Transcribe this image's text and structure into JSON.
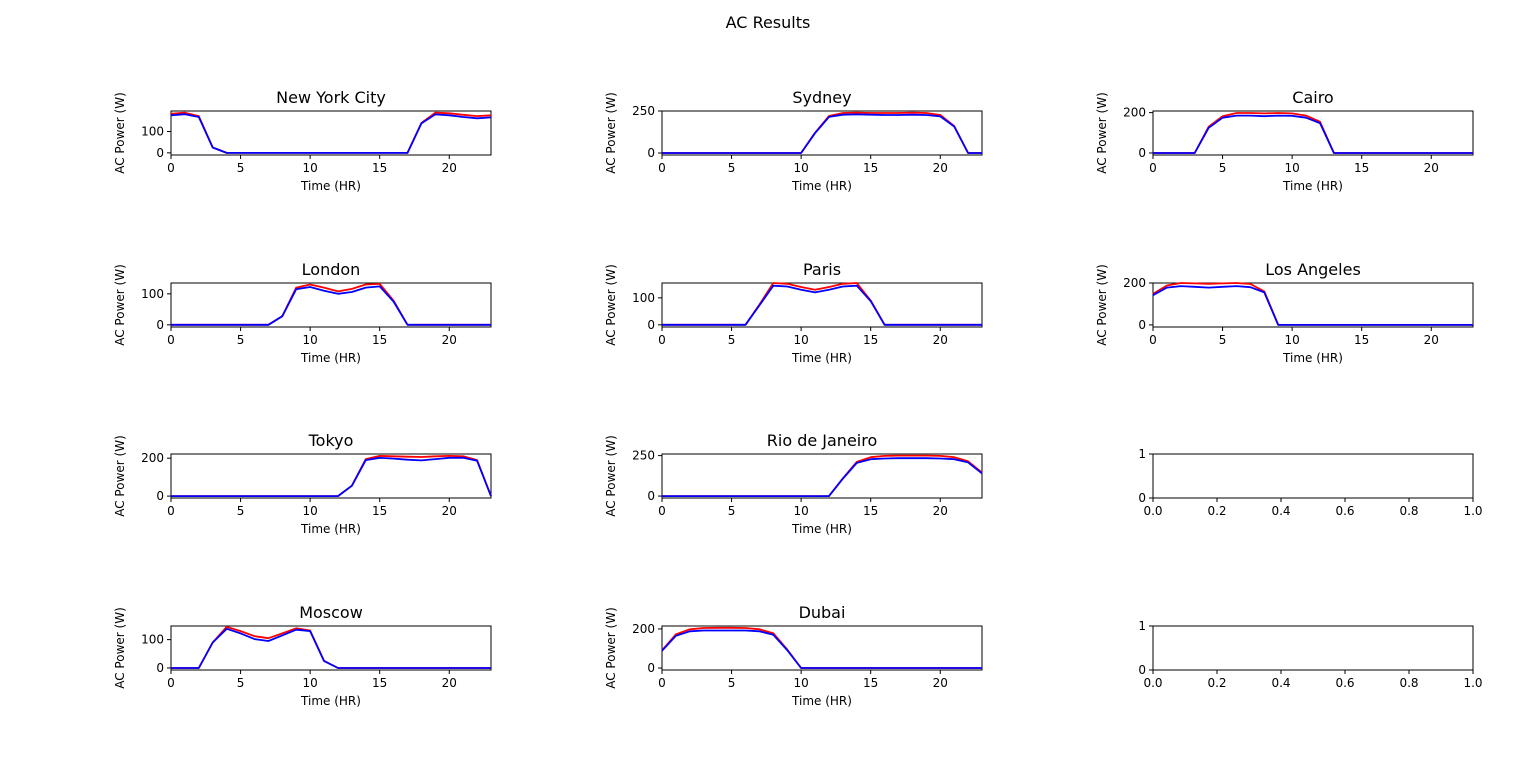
{
  "figure_title": "AC Results",
  "colors": {
    "series_a": "#ff0000",
    "series_b": "#0000ff",
    "axis": "#000000",
    "background": "#ffffff"
  },
  "chart_data": [
    {
      "type": "line",
      "title": "New York City",
      "xlabel": "Time (HR)",
      "ylabel": "AC Power (W)",
      "xlim": [
        0,
        23
      ],
      "ylim": [
        -10,
        196
      ],
      "xticks": [
        0,
        5,
        10,
        15,
        20
      ],
      "yticks": [
        0,
        100
      ],
      "x": [
        0,
        1,
        2,
        3,
        4,
        5,
        6,
        7,
        8,
        9,
        10,
        11,
        12,
        13,
        14,
        15,
        16,
        17,
        18,
        19,
        20,
        21,
        22,
        23
      ],
      "series": [
        {
          "color": "#ff0000",
          "values": [
            183,
            188,
            172,
            25,
            0,
            0,
            0,
            0,
            0,
            0,
            0,
            0,
            0,
            0,
            0,
            0,
            0,
            0,
            140,
            188,
            185,
            178,
            172,
            176
          ]
        },
        {
          "color": "#0000ff",
          "values": [
            176,
            181,
            168,
            25,
            0,
            0,
            0,
            0,
            0,
            0,
            0,
            0,
            0,
            0,
            0,
            0,
            0,
            0,
            138,
            180,
            176,
            168,
            162,
            166
          ]
        }
      ]
    },
    {
      "type": "line",
      "title": "Sydney",
      "xlabel": "Time (HR)",
      "ylabel": "AC Power (W)",
      "xlim": [
        0,
        23
      ],
      "ylim": [
        -12,
        250
      ],
      "xticks": [
        0,
        5,
        10,
        15,
        20
      ],
      "yticks": [
        0,
        250
      ],
      "x": [
        0,
        1,
        2,
        3,
        4,
        5,
        6,
        7,
        8,
        9,
        10,
        11,
        12,
        13,
        14,
        15,
        16,
        17,
        18,
        19,
        20,
        21,
        22,
        23
      ],
      "series": [
        {
          "color": "#ff0000",
          "values": [
            0,
            0,
            0,
            0,
            0,
            0,
            0,
            0,
            0,
            0,
            0,
            120,
            220,
            238,
            240,
            238,
            238,
            238,
            240,
            238,
            226,
            160,
            0,
            0
          ]
        },
        {
          "color": "#0000ff",
          "values": [
            0,
            0,
            0,
            0,
            0,
            0,
            0,
            0,
            0,
            0,
            0,
            118,
            215,
            228,
            230,
            228,
            226,
            226,
            228,
            226,
            218,
            158,
            0,
            0
          ]
        }
      ]
    },
    {
      "type": "line",
      "title": "Cairo",
      "xlabel": "Time (HR)",
      "ylabel": "AC Power (W)",
      "xlim": [
        0,
        23
      ],
      "ylim": [
        -10,
        208
      ],
      "xticks": [
        0,
        5,
        10,
        15,
        20
      ],
      "yticks": [
        0,
        200
      ],
      "x": [
        0,
        1,
        2,
        3,
        4,
        5,
        6,
        7,
        8,
        9,
        10,
        11,
        12,
        13,
        14,
        15,
        16,
        17,
        18,
        19,
        20,
        21,
        22,
        23
      ],
      "series": [
        {
          "color": "#ff0000",
          "values": [
            0,
            0,
            0,
            0,
            130,
            182,
            198,
            198,
            196,
            198,
            196,
            185,
            155,
            0,
            0,
            0,
            0,
            0,
            0,
            0,
            0,
            0,
            0,
            0
          ]
        },
        {
          "color": "#0000ff",
          "values": [
            0,
            0,
            0,
            0,
            125,
            175,
            185,
            185,
            182,
            185,
            184,
            175,
            148,
            0,
            0,
            0,
            0,
            0,
            0,
            0,
            0,
            0,
            0,
            0
          ]
        }
      ]
    },
    {
      "type": "line",
      "title": "London",
      "xlabel": "Time (HR)",
      "ylabel": "AC Power (W)",
      "xlim": [
        0,
        23
      ],
      "ylim": [
        -7,
        135
      ],
      "xticks": [
        0,
        5,
        10,
        15,
        20
      ],
      "yticks": [
        0,
        100
      ],
      "x": [
        0,
        1,
        2,
        3,
        4,
        5,
        6,
        7,
        8,
        9,
        10,
        11,
        12,
        13,
        14,
        15,
        16,
        17,
        18,
        19,
        20,
        21,
        22,
        23
      ],
      "series": [
        {
          "color": "#ff0000",
          "values": [
            0,
            0,
            0,
            0,
            0,
            0,
            0,
            0,
            28,
            120,
            130,
            120,
            108,
            116,
            130,
            132,
            78,
            0,
            0,
            0,
            0,
            0,
            0,
            0
          ]
        },
        {
          "color": "#0000ff",
          "values": [
            0,
            0,
            0,
            0,
            0,
            0,
            0,
            0,
            28,
            115,
            122,
            110,
            100,
            106,
            120,
            124,
            75,
            0,
            0,
            0,
            0,
            0,
            0,
            0
          ]
        }
      ]
    },
    {
      "type": "line",
      "title": "Paris",
      "xlabel": "Time (HR)",
      "ylabel": "AC Power (W)",
      "xlim": [
        0,
        23
      ],
      "ylim": [
        -8,
        155
      ],
      "xticks": [
        0,
        5,
        10,
        15,
        20
      ],
      "yticks": [
        0,
        100
      ],
      "x": [
        0,
        1,
        2,
        3,
        4,
        5,
        6,
        7,
        8,
        9,
        10,
        11,
        12,
        13,
        14,
        15,
        16,
        17,
        18,
        19,
        20,
        21,
        22,
        23
      ],
      "series": [
        {
          "color": "#ff0000",
          "values": [
            0,
            0,
            0,
            0,
            0,
            0,
            0,
            75,
            155,
            152,
            140,
            130,
            140,
            152,
            155,
            90,
            0,
            0,
            0,
            0,
            0,
            0,
            0,
            0
          ]
        },
        {
          "color": "#0000ff",
          "values": [
            0,
            0,
            0,
            0,
            0,
            0,
            0,
            72,
            145,
            142,
            130,
            120,
            130,
            142,
            145,
            88,
            0,
            0,
            0,
            0,
            0,
            0,
            0,
            0
          ]
        }
      ]
    },
    {
      "type": "line",
      "title": "Los Angeles",
      "xlabel": "Time (HR)",
      "ylabel": "AC Power (W)",
      "xlim": [
        0,
        23
      ],
      "ylim": [
        -10,
        200
      ],
      "xticks": [
        0,
        5,
        10,
        15,
        20
      ],
      "yticks": [
        0,
        200
      ],
      "x": [
        0,
        1,
        2,
        3,
        4,
        5,
        6,
        7,
        8,
        9,
        10,
        11,
        12,
        13,
        14,
        15,
        16,
        17,
        18,
        19,
        20,
        21,
        22,
        23
      ],
      "series": [
        {
          "color": "#ff0000",
          "values": [
            148,
            188,
            200,
            198,
            196,
            198,
            200,
            195,
            160,
            0,
            0,
            0,
            0,
            0,
            0,
            0,
            0,
            0,
            0,
            0,
            0,
            0,
            0,
            0
          ]
        },
        {
          "color": "#0000ff",
          "values": [
            142,
            178,
            185,
            182,
            178,
            182,
            185,
            180,
            155,
            0,
            0,
            0,
            0,
            0,
            0,
            0,
            0,
            0,
            0,
            0,
            0,
            0,
            0,
            0
          ]
        }
      ]
    },
    {
      "type": "line",
      "title": "Tokyo",
      "xlabel": "Time (HR)",
      "ylabel": "AC Power (W)",
      "xlim": [
        0,
        23
      ],
      "ylim": [
        -10,
        222
      ],
      "xticks": [
        0,
        5,
        10,
        15,
        20
      ],
      "yticks": [
        0,
        200
      ],
      "x": [
        0,
        1,
        2,
        3,
        4,
        5,
        6,
        7,
        8,
        9,
        10,
        11,
        12,
        13,
        14,
        15,
        16,
        17,
        18,
        19,
        20,
        21,
        22,
        23
      ],
      "series": [
        {
          "color": "#ff0000",
          "values": [
            0,
            0,
            0,
            0,
            0,
            0,
            0,
            0,
            0,
            0,
            0,
            0,
            0,
            55,
            195,
            212,
            210,
            208,
            206,
            210,
            212,
            210,
            190,
            0
          ]
        },
        {
          "color": "#0000ff",
          "values": [
            0,
            0,
            0,
            0,
            0,
            0,
            0,
            0,
            0,
            0,
            0,
            0,
            0,
            55,
            190,
            202,
            198,
            192,
            188,
            195,
            202,
            202,
            186,
            0
          ]
        }
      ]
    },
    {
      "type": "line",
      "title": "Rio de Janeiro",
      "xlabel": "Time (HR)",
      "ylabel": "AC Power (W)",
      "xlim": [
        0,
        23
      ],
      "ylim": [
        -12,
        260
      ],
      "xticks": [
        0,
        5,
        10,
        15,
        20
      ],
      "yticks": [
        0,
        250
      ],
      "x": [
        0,
        1,
        2,
        3,
        4,
        5,
        6,
        7,
        8,
        9,
        10,
        11,
        12,
        13,
        14,
        15,
        16,
        17,
        18,
        19,
        20,
        21,
        22,
        23
      ],
      "series": [
        {
          "color": "#ff0000",
          "values": [
            0,
            0,
            0,
            0,
            0,
            0,
            0,
            0,
            0,
            0,
            0,
            0,
            0,
            110,
            212,
            240,
            248,
            250,
            250,
            250,
            248,
            240,
            215,
            145
          ]
        },
        {
          "color": "#0000ff",
          "values": [
            0,
            0,
            0,
            0,
            0,
            0,
            0,
            0,
            0,
            0,
            0,
            0,
            0,
            108,
            205,
            228,
            232,
            234,
            234,
            234,
            232,
            228,
            208,
            140
          ]
        }
      ]
    },
    {
      "type": "empty",
      "title": "",
      "xlabel": "",
      "ylabel": "",
      "xlim": [
        0,
        1
      ],
      "ylim": [
        0,
        1
      ],
      "xticks": [
        0.0,
        0.2,
        0.4,
        0.6,
        0.8,
        1.0
      ],
      "yticks": [
        0,
        1
      ],
      "xtick_labels": [
        "0.0",
        "0.2",
        "0.4",
        "0.6",
        "0.8",
        "1.0"
      ],
      "ytick_labels": [
        "0",
        "1"
      ],
      "x": [],
      "series": []
    },
    {
      "type": "line",
      "title": "Moscow",
      "xlabel": "Time (HR)",
      "ylabel": "AC Power (W)",
      "xlim": [
        0,
        23
      ],
      "ylim": [
        -7,
        148
      ],
      "xticks": [
        0,
        5,
        10,
        15,
        20
      ],
      "yticks": [
        0,
        100
      ],
      "x": [
        0,
        1,
        2,
        3,
        4,
        5,
        6,
        7,
        8,
        9,
        10,
        11,
        12,
        13,
        14,
        15,
        16,
        17,
        18,
        19,
        20,
        21,
        22,
        23
      ],
      "series": [
        {
          "color": "#ff0000",
          "values": [
            0,
            0,
            0,
            90,
            145,
            130,
            112,
            105,
            122,
            140,
            132,
            25,
            0,
            0,
            0,
            0,
            0,
            0,
            0,
            0,
            0,
            0,
            0,
            0
          ]
        },
        {
          "color": "#0000ff",
          "values": [
            0,
            0,
            0,
            90,
            138,
            122,
            102,
            95,
            115,
            135,
            130,
            25,
            0,
            0,
            0,
            0,
            0,
            0,
            0,
            0,
            0,
            0,
            0,
            0
          ]
        }
      ]
    },
    {
      "type": "line",
      "title": "Dubai",
      "xlabel": "Time (HR)",
      "ylabel": "AC Power (W)",
      "xlim": [
        0,
        23
      ],
      "ylim": [
        -10,
        215
      ],
      "xticks": [
        0,
        5,
        10,
        15,
        20
      ],
      "yticks": [
        0,
        200
      ],
      "x": [
        0,
        1,
        2,
        3,
        4,
        5,
        6,
        7,
        8,
        9,
        10,
        11,
        12,
        13,
        14,
        15,
        16,
        17,
        18,
        19,
        20,
        21,
        22,
        23
      ],
      "series": [
        {
          "color": "#ff0000",
          "values": [
            90,
            172,
            198,
            205,
            206,
            206,
            205,
            198,
            178,
            95,
            0,
            0,
            0,
            0,
            0,
            0,
            0,
            0,
            0,
            0,
            0,
            0,
            0,
            0
          ]
        },
        {
          "color": "#0000ff",
          "values": [
            88,
            165,
            188,
            192,
            192,
            192,
            192,
            188,
            170,
            92,
            0,
            0,
            0,
            0,
            0,
            0,
            0,
            0,
            0,
            0,
            0,
            0,
            0,
            0
          ]
        }
      ]
    },
    {
      "type": "empty",
      "title": "",
      "xlabel": "",
      "ylabel": "",
      "xlim": [
        0,
        1
      ],
      "ylim": [
        0,
        1
      ],
      "xticks": [
        0.0,
        0.2,
        0.4,
        0.6,
        0.8,
        1.0
      ],
      "yticks": [
        0,
        1
      ],
      "xtick_labels": [
        "0.0",
        "0.2",
        "0.4",
        "0.6",
        "0.8",
        "1.0"
      ],
      "ytick_labels": [
        "0",
        "1"
      ],
      "x": [],
      "series": []
    }
  ]
}
